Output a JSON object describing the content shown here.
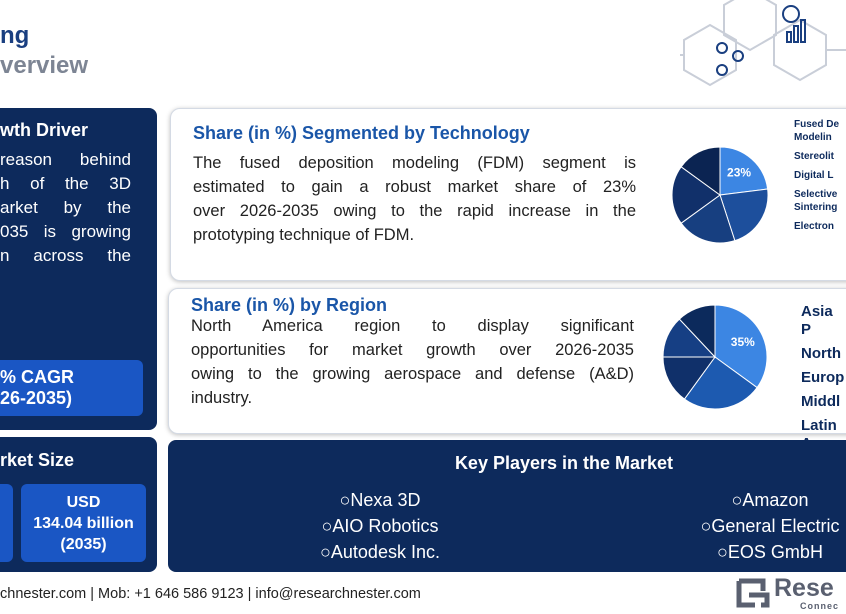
{
  "header": {
    "title": "ng",
    "subtitle": "verview"
  },
  "growth_driver": {
    "title": "wth Driver",
    "lines": [
      "reason behind",
      "h of the 3D",
      "arket by the",
      "035 is growing",
      "n across the"
    ],
    "cagr": [
      "% CAGR",
      "26-2035)"
    ]
  },
  "market_size": {
    "title": "rket Size",
    "box": [
      "USD",
      "134.04 billion",
      "(2035)"
    ]
  },
  "technology": {
    "title": "Share (in %) Segmented by Technology",
    "lines": [
      "The fused deposition modeling (FDM) segment is",
      "estimated to gain a robust market share of 23%",
      "over 2026-2035 owing to the rapid increase in the",
      "prototyping technique of FDM."
    ]
  },
  "region": {
    "title": "Share (in %) by Region",
    "lines": [
      "North America region to display significant",
      "opportunities for market growth over 2026-2035",
      "owing to the growing aerospace and defense (A&D)",
      "industry."
    ]
  },
  "chart_data": [
    {
      "type": "pie",
      "categories": [
        "Fused De\nModelin",
        "Stereolit",
        "Digital L",
        "Selective\nSintering",
        "Electron"
      ],
      "values": [
        23,
        22,
        20,
        20,
        15
      ],
      "value_labels": [
        "23%",
        null,
        null,
        null,
        null
      ],
      "colors": [
        "#3c86e3",
        "#1d4f9c",
        "#173f80",
        "#11306a",
        "#0b2452"
      ]
    },
    {
      "type": "pie",
      "categories": [
        "Asia P",
        "North",
        "Europ",
        "Middl",
        "Latin A"
      ],
      "values": [
        35,
        25,
        15,
        13,
        12
      ],
      "value_labels": [
        "35%",
        null,
        null,
        null,
        null
      ],
      "colors": [
        "#3c86e3",
        "#1d5ab0",
        "#10306a",
        "#163f84",
        "#0c2a5c"
      ]
    }
  ],
  "key_players": {
    "title": "Key Players in the Market",
    "left": [
      "○Nexa 3D",
      "○AIO Robotics",
      "○Autodesk Inc."
    ],
    "right": [
      "○Amazon",
      "○General Electric",
      "○EOS GmbH"
    ]
  },
  "footer": {
    "contact": "chnester.com | Mob: +1 646 586 9123 | info@researchnester.com",
    "logo": "Rese",
    "logo_sub": "Connec"
  }
}
